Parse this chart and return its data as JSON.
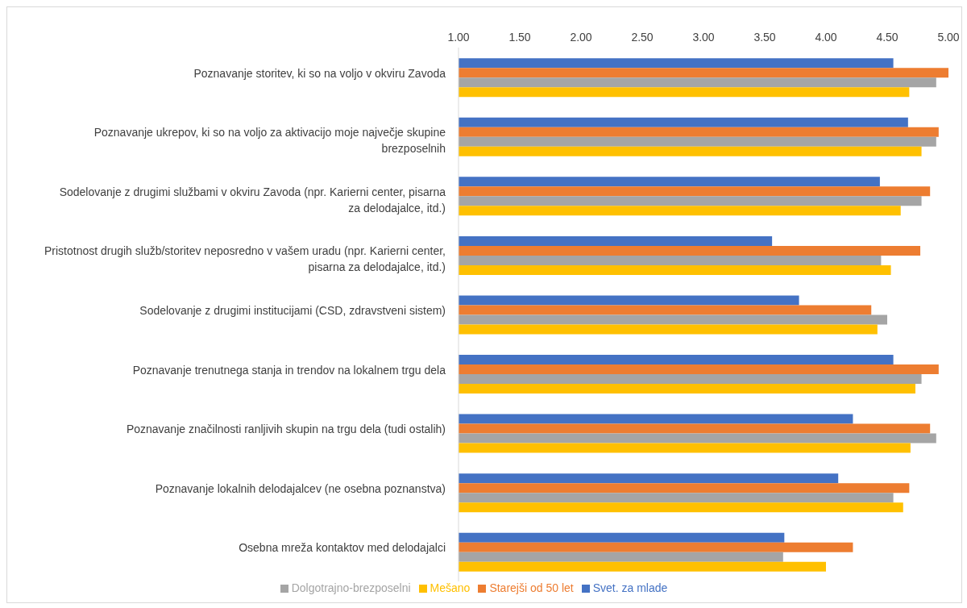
{
  "chart_data": {
    "type": "bar",
    "orientation": "horizontal",
    "categories": [
      "Poznavanje storitev, ki so na voljo v okviru Zavoda",
      "Poznavanje ukrepov, ki so na voljo za aktivacijo moje največje skupine brezposelnih",
      "Sodelovanje z drugimi službami v okviru Zavoda (npr. Karierni center, pisarna za delodajalce, itd.)",
      "Pristotnost drugih služb/storitev neposredno v vašem uradu  (npr. Karierni center, pisarna za delodajalce, itd.)",
      "Sodelovanje z drugimi institucijami (CSD, zdravstveni sistem)",
      "Poznavanje trenutnega stanja in trendov na lokalnem trgu dela",
      "Poznavanje značilnosti ranljivih skupin na trgu dela (tudi ostalih)",
      "Poznavanje lokalnih delodajalcev (ne osebna poznanstva)",
      "Osebna mreža kontaktov med delodajalci"
    ],
    "series": [
      {
        "name": "Svet. za mlade",
        "color": "#4472c4",
        "values": [
          4.55,
          4.67,
          4.44,
          3.56,
          3.78,
          4.55,
          4.22,
          4.1,
          3.66
        ]
      },
      {
        "name": "Starejši od 50 let",
        "color": "#ed7d31",
        "values": [
          5.0,
          4.92,
          4.85,
          4.77,
          4.37,
          4.92,
          4.85,
          4.68,
          4.22
        ]
      },
      {
        "name": "Dolgotrajno-brezposelni",
        "color": "#a5a5a5",
        "values": [
          4.9,
          4.9,
          4.78,
          4.45,
          4.5,
          4.78,
          4.9,
          4.55,
          3.65
        ]
      },
      {
        "name": "Mešano",
        "color": "#ffc000",
        "values": [
          4.68,
          4.78,
          4.61,
          4.53,
          4.42,
          4.73,
          4.69,
          4.63,
          4.0
        ]
      }
    ],
    "xlim": [
      1,
      5
    ],
    "xticks": [
      {
        "value": 1,
        "label": "1.00"
      },
      {
        "value": 1.5,
        "label": "1.50"
      },
      {
        "value": 2,
        "label": "2.00"
      },
      {
        "value": 2.5,
        "label": "2.50"
      },
      {
        "value": 3,
        "label": "3.00"
      },
      {
        "value": 3.5,
        "label": "3.50"
      },
      {
        "value": 4,
        "label": "4.00"
      },
      {
        "value": 4.5,
        "label": "4.50"
      },
      {
        "value": 5,
        "label": "5.00"
      }
    ],
    "grid": false,
    "legend": "bottom"
  }
}
